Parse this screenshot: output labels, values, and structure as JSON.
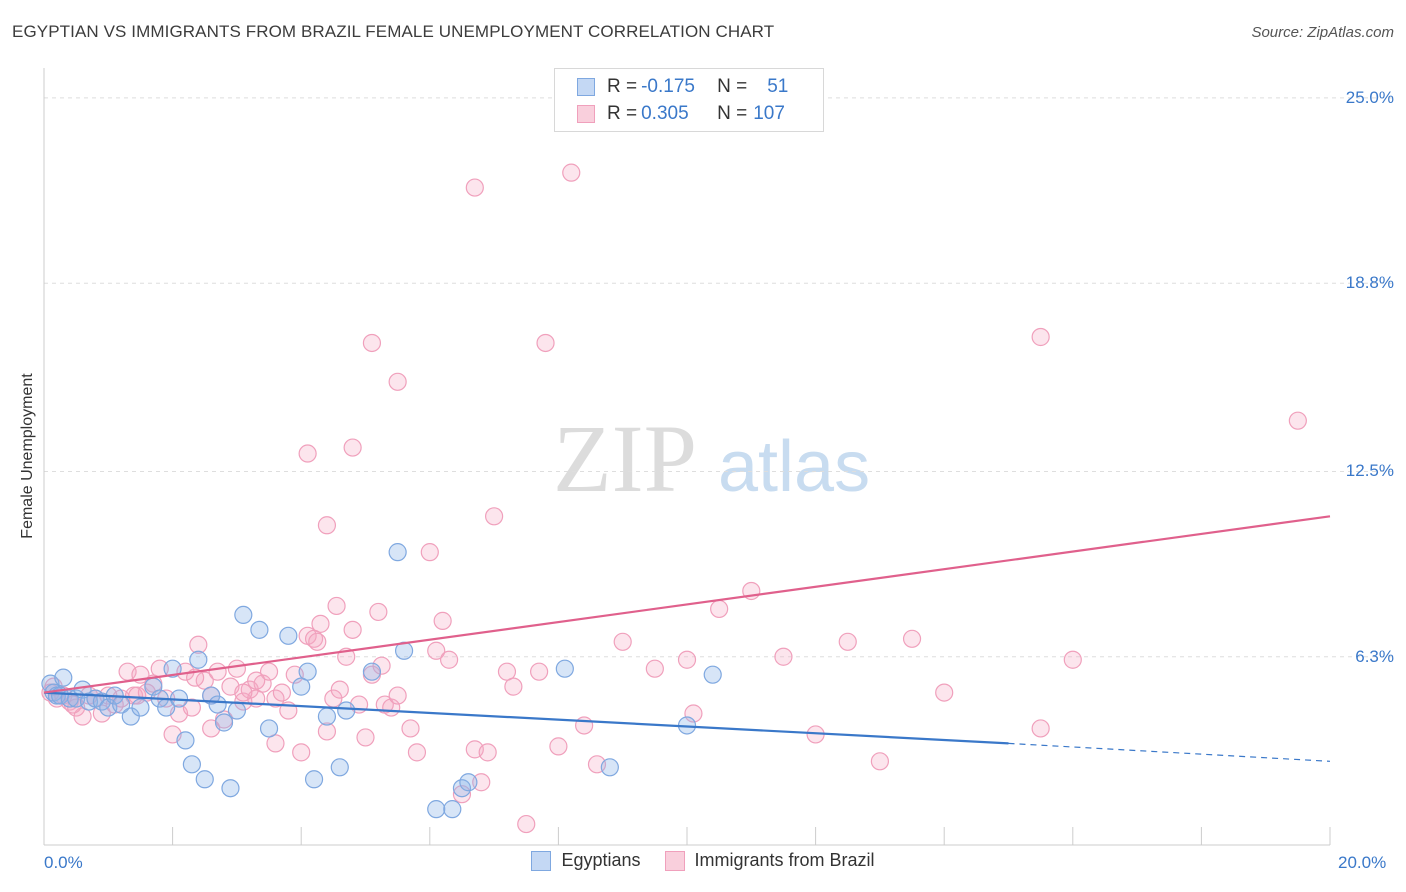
{
  "title": "EGYPTIAN VS IMMIGRANTS FROM BRAZIL FEMALE UNEMPLOYMENT CORRELATION CHART",
  "source": "Source: ZipAtlas.com",
  "watermark": {
    "zip": "ZIP",
    "atlas": "atlas"
  },
  "colors": {
    "blue": "#7fa8e0",
    "blue_line": "#3a78c9",
    "pink": "#f0a0bc",
    "pink_line": "#e0608c",
    "accent": "#3a78c9"
  },
  "legend": {
    "rows": [
      {
        "r_label": "R = ",
        "r_value": "-0.175",
        "n_label": "N = ",
        "n_value": "51"
      },
      {
        "r_label": "R = ",
        "r_value": "0.305",
        "n_label": "N = ",
        "n_value": "107"
      }
    ]
  },
  "bottom_legend": [
    "Egyptians",
    "Immigrants from Brazil"
  ],
  "chart_data": {
    "type": "scatter",
    "title": "EGYPTIAN VS IMMIGRANTS FROM BRAZIL FEMALE UNEMPLOYMENT CORRELATION CHART",
    "xlabel": "",
    "ylabel": "Female Unemployment",
    "xlim": [
      0,
      20
    ],
    "ylim": [
      0,
      25.6
    ],
    "x_tick_labels": [
      "0.0%",
      "20.0%"
    ],
    "y_ticks": [
      6.3,
      12.5,
      18.8,
      25.0
    ],
    "y_tick_labels": [
      "6.3%",
      "12.5%",
      "18.8%",
      "25.0%"
    ],
    "grid": true,
    "series": [
      {
        "name": "Egyptians",
        "color": "#7fa8e0",
        "trend": {
          "x0": 0,
          "y0": 5.1,
          "x1": 15.0,
          "y1": 3.4,
          "dash_to_x": 20,
          "dash_to_y": 2.8
        },
        "points": [
          [
            0.1,
            5.4
          ],
          [
            0.15,
            5.1
          ],
          [
            0.2,
            5.0
          ],
          [
            0.25,
            5.0
          ],
          [
            0.3,
            5.6
          ],
          [
            0.4,
            4.9
          ],
          [
            0.5,
            4.9
          ],
          [
            0.6,
            5.2
          ],
          [
            0.7,
            4.8
          ],
          [
            0.8,
            4.9
          ],
          [
            0.9,
            4.8
          ],
          [
            1.0,
            4.6
          ],
          [
            1.1,
            5.0
          ],
          [
            1.2,
            4.7
          ],
          [
            1.35,
            4.3
          ],
          [
            1.5,
            4.6
          ],
          [
            1.7,
            5.3
          ],
          [
            1.8,
            4.9
          ],
          [
            1.9,
            4.6
          ],
          [
            2.0,
            5.9
          ],
          [
            2.1,
            4.9
          ],
          [
            2.2,
            3.5
          ],
          [
            2.3,
            2.7
          ],
          [
            2.4,
            6.2
          ],
          [
            2.5,
            2.2
          ],
          [
            2.6,
            5.0
          ],
          [
            2.7,
            4.7
          ],
          [
            2.8,
            4.1
          ],
          [
            2.9,
            1.9
          ],
          [
            3.0,
            4.5
          ],
          [
            3.1,
            7.7
          ],
          [
            3.35,
            7.2
          ],
          [
            3.5,
            3.9
          ],
          [
            3.8,
            7.0
          ],
          [
            4.0,
            5.3
          ],
          [
            4.1,
            5.8
          ],
          [
            4.2,
            2.2
          ],
          [
            4.4,
            4.3
          ],
          [
            4.6,
            2.6
          ],
          [
            4.7,
            4.5
          ],
          [
            5.1,
            5.8
          ],
          [
            5.5,
            9.8
          ],
          [
            5.6,
            6.5
          ],
          [
            6.1,
            1.2
          ],
          [
            6.35,
            1.2
          ],
          [
            6.5,
            1.9
          ],
          [
            6.6,
            2.1
          ],
          [
            8.1,
            5.9
          ],
          [
            8.8,
            2.6
          ],
          [
            10.0,
            4.0
          ],
          [
            10.4,
            5.7
          ]
        ]
      },
      {
        "name": "Immigrants from Brazil",
        "color": "#f0a0bc",
        "trend": {
          "x0": 0,
          "y0": 5.1,
          "x1": 20,
          "y1": 11.0
        },
        "points": [
          [
            0.1,
            5.1
          ],
          [
            0.15,
            5.3
          ],
          [
            0.2,
            4.9
          ],
          [
            0.3,
            5.0
          ],
          [
            0.4,
            4.8
          ],
          [
            0.5,
            4.6
          ],
          [
            0.6,
            4.3
          ],
          [
            0.7,
            5.0
          ],
          [
            0.8,
            4.9
          ],
          [
            0.9,
            4.4
          ],
          [
            1.0,
            5.0
          ],
          [
            1.1,
            4.7
          ],
          [
            1.2,
            4.9
          ],
          [
            1.3,
            5.8
          ],
          [
            1.4,
            5.0
          ],
          [
            1.5,
            5.7
          ],
          [
            1.6,
            5.1
          ],
          [
            1.7,
            5.4
          ],
          [
            1.8,
            5.9
          ],
          [
            1.9,
            4.9
          ],
          [
            2.0,
            3.7
          ],
          [
            2.1,
            4.4
          ],
          [
            2.2,
            5.8
          ],
          [
            2.3,
            4.6
          ],
          [
            2.4,
            6.7
          ],
          [
            2.5,
            5.5
          ],
          [
            2.6,
            5.0
          ],
          [
            2.7,
            5.8
          ],
          [
            2.8,
            4.2
          ],
          [
            2.9,
            5.3
          ],
          [
            3.0,
            5.9
          ],
          [
            3.1,
            4.8
          ],
          [
            3.2,
            5.2
          ],
          [
            3.3,
            4.9
          ],
          [
            3.4,
            5.4
          ],
          [
            3.5,
            5.8
          ],
          [
            3.6,
            4.9
          ],
          [
            3.7,
            5.1
          ],
          [
            3.8,
            4.5
          ],
          [
            3.9,
            5.7
          ],
          [
            4.0,
            3.1
          ],
          [
            4.1,
            7.0
          ],
          [
            4.2,
            6.9
          ],
          [
            4.3,
            7.4
          ],
          [
            4.4,
            3.8
          ],
          [
            4.5,
            4.9
          ],
          [
            4.6,
            5.2
          ],
          [
            4.7,
            6.3
          ],
          [
            4.8,
            7.2
          ],
          [
            4.9,
            4.7
          ],
          [
            5.0,
            3.6
          ],
          [
            5.1,
            5.7
          ],
          [
            5.2,
            7.8
          ],
          [
            5.3,
            4.7
          ],
          [
            5.4,
            4.6
          ],
          [
            5.5,
            5.0
          ],
          [
            5.7,
            3.9
          ],
          [
            5.8,
            3.1
          ],
          [
            6.0,
            9.8
          ],
          [
            6.1,
            6.5
          ],
          [
            6.2,
            7.5
          ],
          [
            6.3,
            6.2
          ],
          [
            6.5,
            1.7
          ],
          [
            6.7,
            3.2
          ],
          [
            6.8,
            2.1
          ],
          [
            7.0,
            11.0
          ],
          [
            7.2,
            5.8
          ],
          [
            7.3,
            5.3
          ],
          [
            7.5,
            0.7
          ],
          [
            7.7,
            5.8
          ],
          [
            8.0,
            3.3
          ],
          [
            8.4,
            4.0
          ],
          [
            9.0,
            6.8
          ],
          [
            9.5,
            5.9
          ],
          [
            10.0,
            6.2
          ],
          [
            10.5,
            7.9
          ],
          [
            11.0,
            8.5
          ],
          [
            11.5,
            6.3
          ],
          [
            12.0,
            3.7
          ],
          [
            12.5,
            6.8
          ],
          [
            13.0,
            2.8
          ],
          [
            13.5,
            6.9
          ],
          [
            14.0,
            5.1
          ],
          [
            15.5,
            3.9
          ],
          [
            16.0,
            6.2
          ],
          [
            4.1,
            13.1
          ],
          [
            4.4,
            10.7
          ],
          [
            4.8,
            13.3
          ],
          [
            5.1,
            16.8
          ],
          [
            5.5,
            15.5
          ],
          [
            6.7,
            22.0
          ],
          [
            7.8,
            16.8
          ],
          [
            8.2,
            22.5
          ],
          [
            11.3,
            25.0
          ],
          [
            15.5,
            17.0
          ],
          [
            19.5,
            14.2
          ],
          [
            3.3,
            5.5
          ],
          [
            2.35,
            5.6
          ],
          [
            1.45,
            5.0
          ],
          [
            0.45,
            4.7
          ],
          [
            3.1,
            5.1
          ],
          [
            6.9,
            3.1
          ],
          [
            8.6,
            2.7
          ],
          [
            10.1,
            4.4
          ],
          [
            2.6,
            3.9
          ],
          [
            3.6,
            3.4
          ],
          [
            4.25,
            6.8
          ],
          [
            4.55,
            8.0
          ],
          [
            5.25,
            6.0
          ]
        ]
      }
    ]
  }
}
